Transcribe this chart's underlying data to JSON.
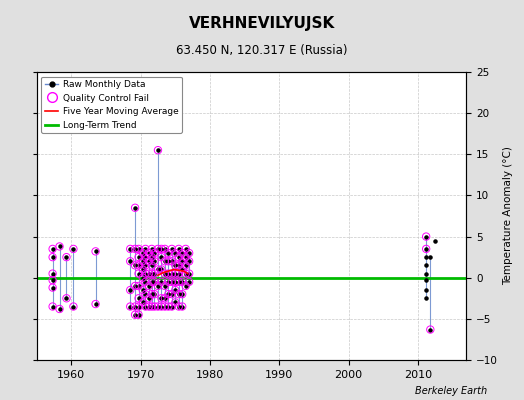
{
  "title": "VERHNEVILYUJSK",
  "subtitle": "63.450 N, 120.317 E (Russia)",
  "ylabel": "Temperature Anomaly (°C)",
  "credit": "Berkeley Earth",
  "xlim": [
    1955,
    2017
  ],
  "ylim": [
    -10,
    25
  ],
  "yticks": [
    -10,
    -5,
    0,
    5,
    10,
    15,
    20,
    25
  ],
  "xticks": [
    1960,
    1970,
    1980,
    1990,
    2000,
    2010
  ],
  "background_color": "#e0e0e0",
  "plot_bg_color": "#ffffff",
  "grid_color": "#bbbbbb",
  "long_term_trend_y": 0.0,
  "segments": [
    {
      "x": 1957.3,
      "y": [
        3.5,
        2.5,
        0.5,
        -0.3,
        -1.2,
        -3.5
      ],
      "qc": [
        true,
        true,
        true,
        true,
        true,
        true
      ]
    },
    {
      "x": 1958.3,
      "y": [
        3.8,
        -3.8
      ],
      "qc": [
        true,
        true
      ]
    },
    {
      "x": 1959.3,
      "y": [
        2.5,
        -2.5
      ],
      "qc": [
        true,
        true
      ]
    },
    {
      "x": 1960.3,
      "y": [
        3.5,
        -3.5
      ],
      "qc": [
        true,
        true
      ]
    },
    {
      "x": 1963.5,
      "y": [
        3.2,
        -3.2
      ],
      "qc": [
        true,
        true
      ]
    },
    {
      "x": 1968.5,
      "y": [
        3.5,
        2.0,
        -1.5,
        -3.5
      ],
      "qc": [
        true,
        true,
        true,
        true
      ]
    },
    {
      "x": 1969.2,
      "y": [
        8.5,
        3.5,
        1.5,
        -1.0,
        -3.5,
        -4.5
      ],
      "qc": [
        true,
        true,
        true,
        true,
        true,
        true
      ]
    },
    {
      "x": 1969.7,
      "y": [
        3.5,
        2.5,
        1.5,
        0.5,
        -1.0,
        -2.5,
        -3.5,
        -4.5
      ],
      "qc": [
        true,
        true,
        true,
        true,
        true,
        true,
        true,
        true
      ]
    },
    {
      "x": 1970.3,
      "y": [
        3.0,
        2.0,
        1.0,
        0.0,
        -1.5,
        -3.0
      ],
      "qc": [
        true,
        true,
        true,
        true,
        true,
        true
      ]
    },
    {
      "x": 1970.7,
      "y": [
        3.5,
        2.5,
        1.5,
        0.5,
        -0.5,
        -2.0,
        -3.5
      ],
      "qc": [
        true,
        true,
        true,
        true,
        true,
        true,
        true
      ]
    },
    {
      "x": 1971.2,
      "y": [
        3.0,
        2.0,
        0.5,
        -1.0,
        -2.5,
        -3.5
      ],
      "qc": [
        true,
        true,
        true,
        true,
        true,
        true
      ]
    },
    {
      "x": 1971.6,
      "y": [
        3.5,
        2.5,
        1.5,
        0.5,
        -0.5,
        -2.0,
        -3.5
      ],
      "qc": [
        true,
        true,
        true,
        true,
        true,
        true,
        true
      ]
    },
    {
      "x": 1972.0,
      "y": [
        3.0,
        2.0,
        0.5,
        -0.5,
        -2.0,
        -3.5
      ],
      "qc": [
        true,
        true,
        true,
        true,
        true,
        true
      ]
    },
    {
      "x": 1972.5,
      "y": [
        15.5,
        3.5,
        1.0,
        -1.0,
        -3.5
      ],
      "qc": [
        true,
        true,
        true,
        true,
        true
      ]
    },
    {
      "x": 1973.0,
      "y": [
        3.5,
        2.5,
        1.0,
        -0.5,
        -2.5,
        -3.5
      ],
      "qc": [
        true,
        true,
        true,
        true,
        true,
        true
      ]
    },
    {
      "x": 1973.5,
      "y": [
        3.5,
        2.0,
        0.5,
        -1.0,
        -2.5,
        -3.5
      ],
      "qc": [
        true,
        true,
        true,
        true,
        true,
        true
      ]
    },
    {
      "x": 1974.0,
      "y": [
        3.0,
        2.0,
        0.5,
        -0.5,
        -2.0,
        -3.5
      ],
      "qc": [
        true,
        true,
        true,
        true,
        true,
        true
      ]
    },
    {
      "x": 1974.5,
      "y": [
        3.5,
        2.0,
        0.5,
        -0.5,
        -2.0,
        -3.5
      ],
      "qc": [
        true,
        true,
        true,
        true,
        true,
        true
      ]
    },
    {
      "x": 1975.0,
      "y": [
        3.0,
        1.5,
        0.5,
        -0.5,
        -1.5,
        -3.0
      ],
      "qc": [
        true,
        true,
        true,
        true,
        true,
        true
      ]
    },
    {
      "x": 1975.5,
      "y": [
        3.5,
        2.5,
        1.5,
        0.5,
        -0.5,
        -2.0,
        -3.5
      ],
      "qc": [
        true,
        true,
        true,
        true,
        true,
        true,
        true
      ]
    },
    {
      "x": 1976.0,
      "y": [
        3.0,
        2.0,
        1.0,
        -0.5,
        -2.0,
        -3.5
      ],
      "qc": [
        true,
        true,
        true,
        true,
        true,
        true
      ]
    },
    {
      "x": 1976.5,
      "y": [
        3.5,
        2.5,
        1.5,
        0.5,
        -1.0
      ],
      "qc": [
        true,
        true,
        true,
        true,
        true
      ]
    },
    {
      "x": 1977.0,
      "y": [
        3.0,
        2.0,
        0.5,
        -0.5
      ],
      "qc": [
        true,
        true,
        true,
        true
      ]
    },
    {
      "x": 2011.2,
      "y": [
        5.0,
        3.5,
        2.5,
        1.5,
        0.5,
        -0.3,
        -1.5,
        -2.5
      ],
      "qc": [
        true,
        true,
        false,
        false,
        false,
        false,
        false,
        false
      ]
    },
    {
      "x": 2011.8,
      "y": [
        2.5,
        -6.3
      ],
      "qc": [
        false,
        true
      ]
    },
    {
      "x": 2012.5,
      "y": [
        4.5
      ],
      "qc": [
        false
      ]
    }
  ],
  "five_year_ma_x": [
    1972.5,
    1973.2,
    1974.0,
    1974.8,
    1975.5,
    1976.2,
    1976.8
  ],
  "five_year_ma_y": [
    0.3,
    0.6,
    0.8,
    1.0,
    0.9,
    0.8,
    0.5
  ],
  "line_color": "#6688cc",
  "dot_color": "#000000",
  "qc_color": "#ff00ff",
  "ma_color": "#ff0000",
  "trend_color": "#00bb00"
}
